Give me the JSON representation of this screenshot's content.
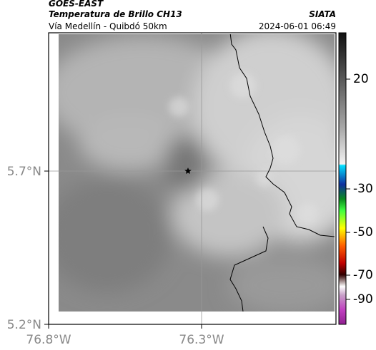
{
  "header": {
    "source": "GOES-EAST",
    "title": "Temperatura de Brillo CH13",
    "route": "Vía Medellín - Quibdó 50km",
    "agency": "SIATA",
    "timestamp": "2024-06-01 06:49"
  },
  "map": {
    "lat_ticks": [
      "5.7°N",
      "5.2°N"
    ],
    "lon_ticks": [
      "76.8°W",
      "76.3°W"
    ]
  },
  "colorbar": {
    "ticks": [
      20,
      -30,
      -50,
      -70,
      -90
    ]
  }
}
